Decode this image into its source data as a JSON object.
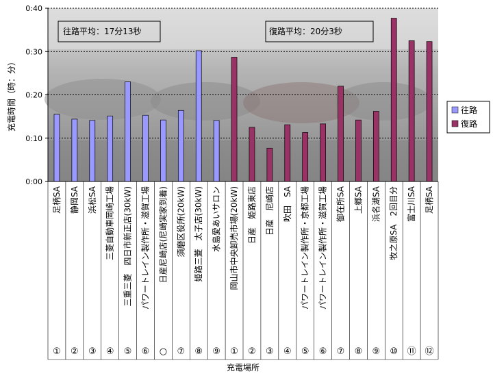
{
  "chart_data": {
    "type": "bar",
    "xlabel": "充電場所",
    "ylabel": "充電時間（時：分）",
    "ylim": [
      0,
      0.4
    ],
    "yticks": [
      "0:00",
      "0:10",
      "0:20",
      "0:30",
      "0:40"
    ],
    "grid": "dashed-horizontal",
    "legend": "right",
    "background": "photo of parked electric cars (grey)",
    "categories": [
      "足柄SA",
      "静岡SA",
      "浜松SA",
      "三菱自動車岡崎工場",
      "三重三菱　四日市新正店(30kW)",
      "パワートレイン製作所・滋賀工場",
      "日産尼崎店(尼崎実家到着)",
      "須磨区役所(20kW)",
      "姫路三菱　太子店(30kW)",
      "水島愛あいサロン",
      "岡山市中央卸売市場(20kW)",
      "日産　姫路東店",
      "日産　尼崎店",
      "吹田　SA",
      "パワートレイン製作所・京都工場",
      "パワートレイン製作所・滋賀工場",
      "御在所SA",
      "上郷SA",
      "浜名湖SA",
      "牧之原SA　2回目分",
      "富士川SA",
      "足柄SA"
    ],
    "markers": [
      "①",
      "②",
      "③",
      "④",
      "⑤",
      "⑥",
      "○",
      "⑦",
      "⑧",
      "⑨",
      "①",
      "②",
      "③",
      "④",
      "⑤",
      "⑥",
      "⑦",
      "⑧",
      "⑨",
      "⑩",
      "⑪",
      "⑫"
    ],
    "series": [
      {
        "name": "往路",
        "color": "#9999ff",
        "values": [
          0.155,
          0.144,
          0.141,
          0.151,
          0.23,
          0.153,
          0.142,
          0.164,
          0.302,
          0.141,
          null,
          null,
          null,
          null,
          null,
          null,
          null,
          null,
          null,
          null,
          null,
          null
        ]
      },
      {
        "name": "復路",
        "color": "#993366",
        "values": [
          null,
          null,
          null,
          null,
          null,
          null,
          null,
          null,
          null,
          null,
          0.287,
          0.125,
          0.077,
          0.131,
          0.113,
          0.133,
          0.22,
          0.142,
          0.162,
          0.377,
          0.325,
          0.323
        ]
      }
    ],
    "annotations": [
      {
        "text": "往路平均：17分13秒",
        "position": "top-left"
      },
      {
        "text": "復路平均：20分3秒",
        "position": "top-right"
      }
    ]
  }
}
